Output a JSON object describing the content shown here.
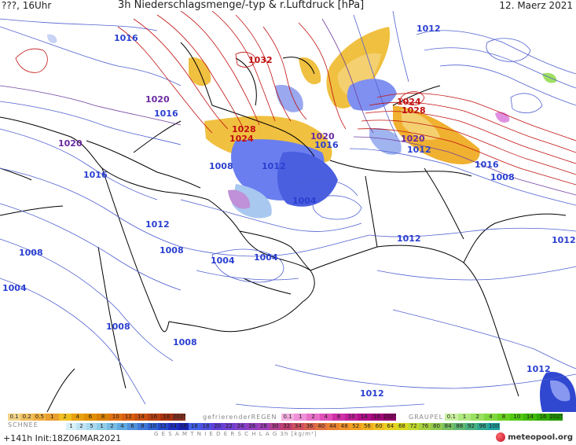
{
  "header": {
    "left": "???, 16Uhr",
    "title": "3h Niederschlagsmenge/-typ & r.Luftdruck [hPa]",
    "date": "12. Maerz 2021"
  },
  "isobar_labels": [
    {
      "id": "l1",
      "text": "1016",
      "color": "#2a3fd0"
    },
    {
      "id": "l2",
      "text": "1012",
      "color": "#2a3fd0"
    },
    {
      "id": "l3",
      "text": "1032",
      "color": "#c01010"
    },
    {
      "id": "l4",
      "text": "1020",
      "color": "#6a2aa0"
    },
    {
      "id": "l5",
      "text": "1016",
      "color": "#2a3fd0"
    },
    {
      "id": "l6",
      "text": "1024",
      "color": "#c01010"
    },
    {
      "id": "l7",
      "text": "1028",
      "color": "#c01010"
    },
    {
      "id": "l8",
      "text": "1020",
      "color": "#6a2aa0"
    },
    {
      "id": "l9",
      "text": "1028",
      "color": "#c01010"
    },
    {
      "id": "l10",
      "text": "1024",
      "color": "#c01010"
    },
    {
      "id": "l11",
      "text": "1020",
      "color": "#6a2aa0"
    },
    {
      "id": "l12",
      "text": "1016",
      "color": "#2a3fd0"
    },
    {
      "id": "l13",
      "text": "1020",
      "color": "#6a2aa0"
    },
    {
      "id": "l14",
      "text": "1012",
      "color": "#2a3fd0"
    },
    {
      "id": "l15",
      "text": "1008",
      "color": "#2a3fd0"
    },
    {
      "id": "l16",
      "text": "1012",
      "color": "#2a3fd0"
    },
    {
      "id": "l17",
      "text": "1016",
      "color": "#2a3fd0"
    },
    {
      "id": "l18",
      "text": "1008",
      "color": "#2a3fd0"
    },
    {
      "id": "l19",
      "text": "1016",
      "color": "#2a3fd0"
    },
    {
      "id": "l20",
      "text": "1004",
      "color": "#2a3fd0"
    },
    {
      "id": "l21",
      "text": "1012",
      "color": "#2a3fd0"
    },
    {
      "id": "l22",
      "text": "1008",
      "color": "#2a3fd0"
    },
    {
      "id": "l23",
      "text": "1008",
      "color": "#2a3fd0"
    },
    {
      "id": "l24",
      "text": "1004",
      "color": "#2a3fd0"
    },
    {
      "id": "l25",
      "text": "1004",
      "color": "#2a3fd0"
    },
    {
      "id": "l26",
      "text": "1012",
      "color": "#2a3fd0"
    },
    {
      "id": "l27",
      "text": "1012",
      "color": "#2a3fd0"
    },
    {
      "id": "l28",
      "text": "1004",
      "color": "#2a3fd0"
    },
    {
      "id": "l29",
      "text": "1008",
      "color": "#2a3fd0"
    },
    {
      "id": "l30",
      "text": "1008",
      "color": "#2a3fd0"
    },
    {
      "id": "l31",
      "text": "1012",
      "color": "#2a3fd0"
    },
    {
      "id": "l32",
      "text": "1012",
      "color": "#2a3fd0"
    }
  ],
  "legend": {
    "rain_values": [
      "0.1",
      "0.2",
      "0.5",
      "1",
      "2",
      "4",
      "6",
      "8",
      "10",
      "12",
      "14",
      "16",
      "18",
      "2025+"
    ],
    "rain_colors": [
      "#f2d58a",
      "#efc060",
      "#f0b040",
      "#e8a030",
      "#f0c020",
      "#e8a010",
      "#e09000",
      "#d88000",
      "#e07010",
      "#d86010",
      "#c85010",
      "#b84010",
      "#a83010",
      "#883020"
    ],
    "frz_label": "gefrierenderREGEN",
    "frz_values": [
      "0.1",
      "1",
      "2",
      "4",
      "8",
      "10",
      "14",
      "16",
      "2025+"
    ],
    "frz_colors": [
      "#f4b0e0",
      "#f090d8",
      "#e870c8",
      "#e050b8",
      "#d030a8",
      "#c02098",
      "#b01088",
      "#a00878",
      "#900068"
    ],
    "graupel_label": "GRAUPEL",
    "graupel_values": [
      "0.1",
      "1",
      "2",
      "4",
      "8",
      "10",
      "14",
      "16",
      "2025+"
    ],
    "graupel_colors": [
      "#c8f0a0",
      "#b0e880",
      "#98e060",
      "#80d840",
      "#68d020",
      "#50c810",
      "#40b808",
      "#30a800",
      "#209800"
    ],
    "snow_label": "SCHNEE",
    "snow_values": [
      "1",
      "2",
      "5",
      "1",
      "2",
      "4",
      "6",
      "8",
      "10",
      "12",
      "14",
      "16"
    ],
    "snow_colors": [
      "#d8f0f8",
      "#c0e4f4",
      "#a8d8ee",
      "#90cce8",
      "#78bce4",
      "#60a8e0",
      "#5090dc",
      "#4078d8",
      "#3060d0",
      "#2848c8",
      "#2030c0",
      "#1820b0"
    ],
    "total_label": "G E S A M T N I E D E R S C H L A G  3h  [kg/m²]",
    "total_values": [
      "16",
      "18",
      "20",
      "22",
      "24",
      "26",
      "28",
      "30",
      "32",
      "34",
      "36",
      "40",
      "44",
      "48",
      "52",
      "56",
      "60",
      "64",
      "68",
      "72",
      "76",
      "80",
      "84",
      "88",
      "92",
      "96",
      "100"
    ],
    "total_colors": [
      "#4060e8",
      "#5050e0",
      "#6040d8",
      "#7040d0",
      "#8040c8",
      "#9040c0",
      "#a040b8",
      "#b04090",
      "#c04070",
      "#d05060",
      "#d86050",
      "#e07040",
      "#e88030",
      "#f09028",
      "#f0a020",
      "#f0b020",
      "#f0c020",
      "#e8d020",
      "#d8d820",
      "#c0d830",
      "#a8d040",
      "#90c850",
      "#78c060",
      "#60b870",
      "#48b080",
      "#30a890",
      "#20a0a0"
    ]
  },
  "footer": {
    "init": "+141h  Init:18Z06MAR2021",
    "brand": "meteopool.org"
  }
}
